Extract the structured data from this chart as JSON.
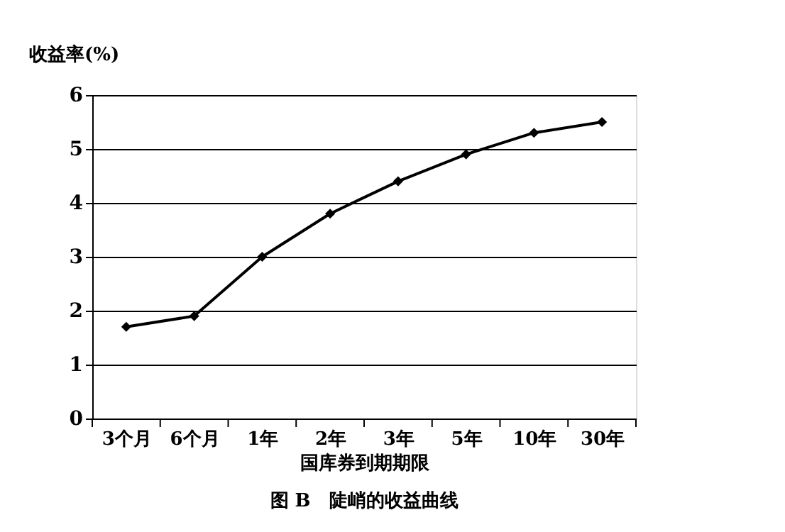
{
  "chart_data": {
    "type": "line",
    "ylabel": "收益率(%)",
    "xlabel": "国库券到期期限",
    "categories": [
      "3个月",
      "6个月",
      "1年",
      "2年",
      "3年",
      "5年",
      "10年",
      "30年"
    ],
    "series": [
      {
        "color": "#000000",
        "values": [
          1.7,
          1.9,
          3.0,
          3.8,
          4.4,
          4.9,
          5.3,
          5.5
        ]
      }
    ],
    "ylim": [
      0,
      6
    ],
    "yticks": [
      0,
      1,
      2,
      3,
      4,
      5,
      6
    ],
    "grid": "y",
    "marker": "diamond",
    "line_style": "solid",
    "legend": false,
    "annotations": [
      "图 B　陡峭的收益曲线"
    ]
  }
}
